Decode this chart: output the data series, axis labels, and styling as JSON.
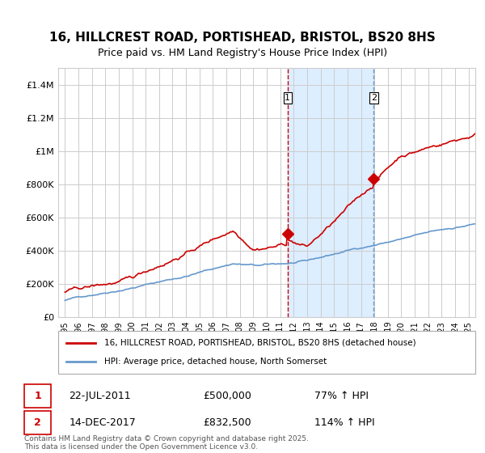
{
  "title": "16, HILLCREST ROAD, PORTISHEAD, BRISTOL, BS20 8HS",
  "subtitle": "Price paid vs. HM Land Registry's House Price Index (HPI)",
  "title_fontsize": 11,
  "subtitle_fontsize": 9,
  "sale1_date": "22-JUL-2011",
  "sale1_price": 500000,
  "sale1_hpi_pct": "77%",
  "sale2_date": "14-DEC-2017",
  "sale2_price": 832500,
  "sale2_hpi_pct": "114%",
  "sale1_x": 2011.55,
  "sale2_x": 2017.95,
  "legend_label1": "16, HILLCREST ROAD, PORTISHEAD, BRISTOL, BS20 8HS (detached house)",
  "legend_label2": "HPI: Average price, detached house, North Somerset",
  "footer": "Contains HM Land Registry data © Crown copyright and database right 2025.\nThis data is licensed under the Open Government Licence v3.0.",
  "red_color": "#cc0000",
  "blue_color": "#6699cc",
  "shade_color": "#ddeeff",
  "grid_color": "#cccccc",
  "bg_color": "#ffffff",
  "ylim": [
    0,
    1500000
  ],
  "yticks": [
    0,
    200000,
    400000,
    600000,
    800000,
    1000000,
    1200000,
    1400000
  ],
  "ytick_labels": [
    "£0",
    "£200K",
    "£400K",
    "£600K",
    "£800K",
    "£1M",
    "£1.2M",
    "£1.4M"
  ],
  "xlim_start": 1994.5,
  "xlim_end": 2025.5
}
